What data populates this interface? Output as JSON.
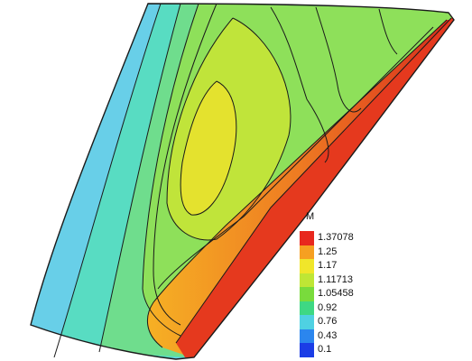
{
  "legend": {
    "title": "M",
    "entries": [
      {
        "label": "1.37078",
        "color": "#e8281e"
      },
      {
        "label": "1.25",
        "color": "#f6a021"
      },
      {
        "label": "1.17",
        "color": "#f0e62a"
      },
      {
        "label": "1.11713",
        "color": "#bfe635"
      },
      {
        "label": "1.05458",
        "color": "#79db3c"
      },
      {
        "label": "0.92",
        "color": "#3ed883"
      },
      {
        "label": "0.76",
        "color": "#4fd1e2"
      },
      {
        "label": "0.43",
        "color": "#2b86ee"
      },
      {
        "label": "0.1",
        "color": "#1b3de6"
      }
    ]
  },
  "colors": {
    "outer_band": "#68cfe8",
    "cyan_green": "#58dcc2",
    "mid_green": "#6fdd8d",
    "green": "#8ee05a",
    "yellow_green": "#c0e43a",
    "yellow": "#e4e22e",
    "leading_edge_orange": "#f08f2a",
    "leading_edge_red": "#e5391e",
    "contour_line": "#1a1a1a"
  }
}
